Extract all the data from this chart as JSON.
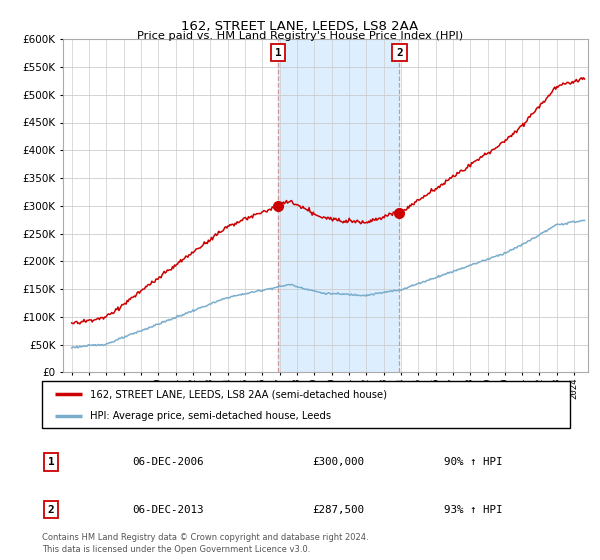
{
  "title": "162, STREET LANE, LEEDS, LS8 2AA",
  "subtitle": "Price paid vs. HM Land Registry's House Price Index (HPI)",
  "legend_line1": "162, STREET LANE, LEEDS, LS8 2AA (semi-detached house)",
  "legend_line2": "HPI: Average price, semi-detached house, Leeds",
  "footer": "Contains HM Land Registry data © Crown copyright and database right 2024.\nThis data is licensed under the Open Government Licence v3.0.",
  "annotation1_date": "06-DEC-2006",
  "annotation1_price": "£300,000",
  "annotation1_hpi": "90% ↑ HPI",
  "annotation2_date": "06-DEC-2013",
  "annotation2_price": "£287,500",
  "annotation2_hpi": "93% ↑ HPI",
  "sale1_year": 2006.92,
  "sale2_year": 2013.92,
  "sale1_price": 300000,
  "sale2_price": 287500,
  "red_line_color": "#cc0000",
  "blue_line_color": "#7aadcc",
  "shade_color": "#ddeeff",
  "background_color": "#ffffff",
  "ylim_max": 600000,
  "xlim_start": 1994.5,
  "xlim_end": 2024.8,
  "ytick_step": 50000,
  "title_fontsize": 9.5,
  "subtitle_fontsize": 8.5
}
